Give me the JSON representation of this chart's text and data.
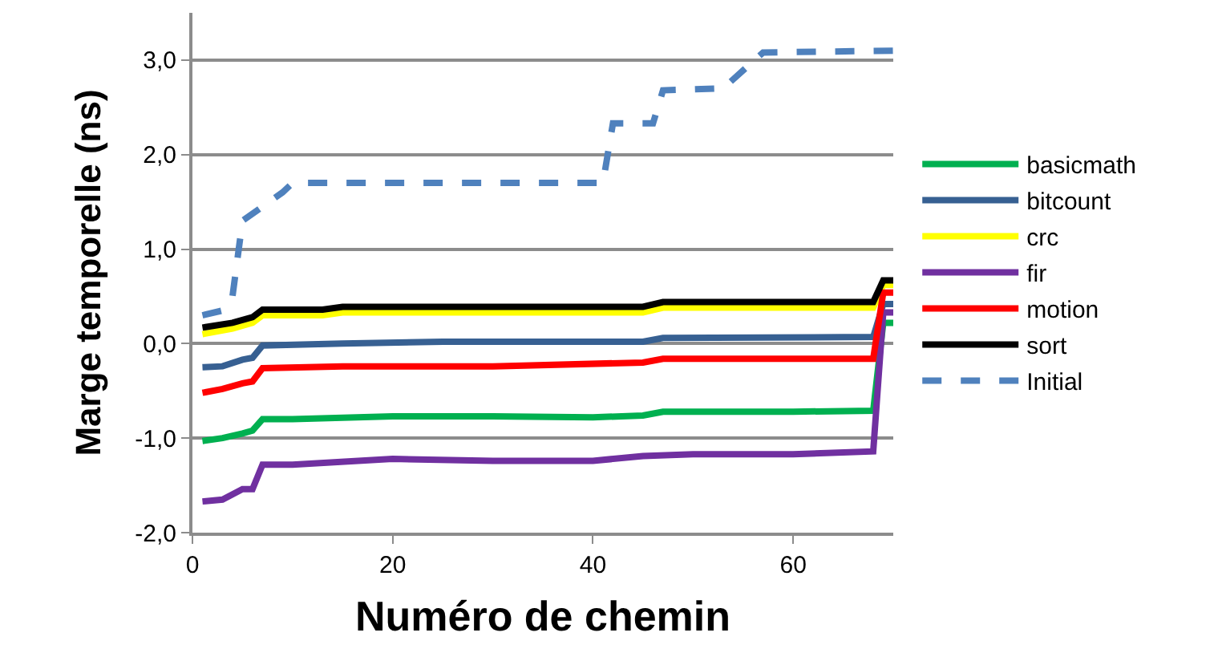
{
  "chart_data": {
    "type": "line",
    "xlabel": "Numéro de chemin",
    "ylabel": "Marge temporelle (ns)",
    "xlim": [
      0,
      70
    ],
    "xticks": [
      0,
      20,
      40,
      60
    ],
    "ylim": [
      -2,
      3.5
    ],
    "yticks": [
      {
        "value": -2,
        "label": "-2,0"
      },
      {
        "value": -1,
        "label": "-1,0"
      },
      {
        "value": 0,
        "label": "0,0"
      },
      {
        "value": 1,
        "label": "1,0"
      },
      {
        "value": 2,
        "label": "2,0"
      },
      {
        "value": 3,
        "label": "3,0"
      }
    ],
    "grid": "y",
    "legend": "right",
    "marker": "none",
    "series": [
      {
        "name": "basicmath",
        "color": "#00b050",
        "line_style": "solid",
        "x": [
          1,
          3,
          5,
          6,
          7,
          10,
          20,
          30,
          40,
          45,
          47,
          55,
          60,
          68,
          69,
          70
        ],
        "values": [
          -1.03,
          -1.0,
          -0.95,
          -0.92,
          -0.8,
          -0.8,
          -0.77,
          -0.77,
          -0.78,
          -0.76,
          -0.72,
          -0.72,
          -0.72,
          -0.71,
          0.22,
          0.22
        ]
      },
      {
        "name": "bitcount",
        "color": "#376092",
        "line_style": "solid",
        "x": [
          1,
          3,
          5,
          6,
          7,
          15,
          25,
          45,
          47,
          68,
          69,
          70
        ],
        "values": [
          -0.25,
          -0.24,
          -0.17,
          -0.15,
          -0.02,
          0.0,
          0.02,
          0.02,
          0.06,
          0.07,
          0.42,
          0.42
        ]
      },
      {
        "name": "crc",
        "color": "#ffff00",
        "line_style": "solid",
        "x": [
          1,
          4,
          6,
          7,
          13,
          15,
          45,
          47,
          68,
          69,
          70
        ],
        "values": [
          0.1,
          0.16,
          0.22,
          0.3,
          0.3,
          0.33,
          0.33,
          0.38,
          0.38,
          0.62,
          0.62
        ]
      },
      {
        "name": "fir",
        "color": "#7030a0",
        "line_style": "solid",
        "x": [
          1,
          3,
          5,
          6,
          7,
          10,
          20,
          30,
          40,
          45,
          50,
          60,
          68,
          69,
          70
        ],
        "values": [
          -1.67,
          -1.65,
          -1.54,
          -1.54,
          -1.28,
          -1.28,
          -1.22,
          -1.24,
          -1.24,
          -1.19,
          -1.17,
          -1.17,
          -1.14,
          0.33,
          0.33
        ]
      },
      {
        "name": "motion",
        "color": "#ff0000",
        "line_style": "solid",
        "x": [
          1,
          3,
          5,
          6,
          7,
          15,
          30,
          45,
          47,
          68,
          69,
          70
        ],
        "values": [
          -0.52,
          -0.48,
          -0.42,
          -0.4,
          -0.26,
          -0.24,
          -0.24,
          -0.2,
          -0.16,
          -0.16,
          0.54,
          0.54
        ]
      },
      {
        "name": "sort",
        "color": "#000000",
        "line_style": "solid",
        "x": [
          1,
          4,
          6,
          7,
          13,
          15,
          45,
          47,
          68,
          69,
          70
        ],
        "values": [
          0.17,
          0.22,
          0.28,
          0.36,
          0.36,
          0.39,
          0.39,
          0.44,
          0.44,
          0.67,
          0.67
        ]
      },
      {
        "name": "Initial",
        "color": "#4f81bd",
        "line_style": "dashed",
        "x": [
          1,
          3,
          4,
          5,
          7,
          9,
          10,
          41,
          42,
          46,
          47,
          53,
          57,
          70
        ],
        "values": [
          0.3,
          0.35,
          0.5,
          1.3,
          1.45,
          1.6,
          1.7,
          1.7,
          2.33,
          2.33,
          2.68,
          2.7,
          3.08,
          3.1
        ]
      }
    ]
  }
}
